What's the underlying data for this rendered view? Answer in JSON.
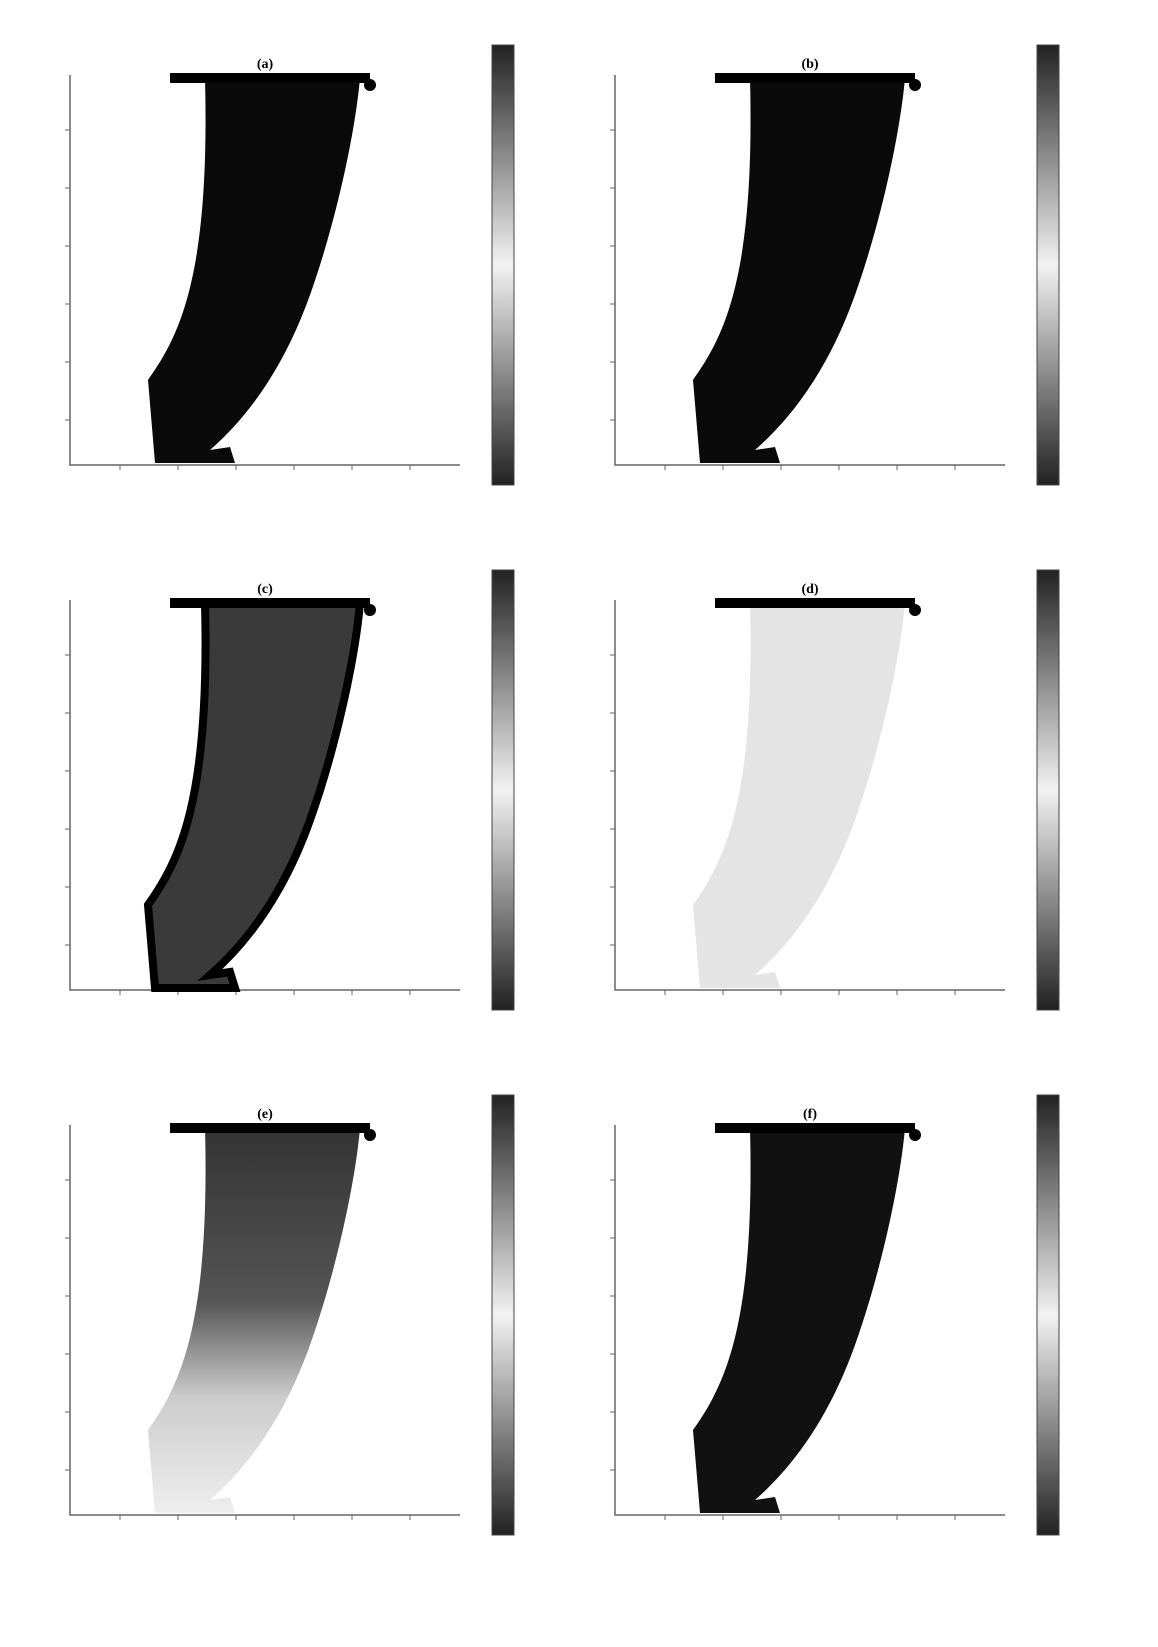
{
  "figure": {
    "panels": [
      {
        "title": "(a)"
      },
      {
        "title": "(b)"
      },
      {
        "title": "(c)"
      },
      {
        "title": "(d)"
      },
      {
        "title": "(e)"
      },
      {
        "title": "(f)"
      }
    ]
  }
}
